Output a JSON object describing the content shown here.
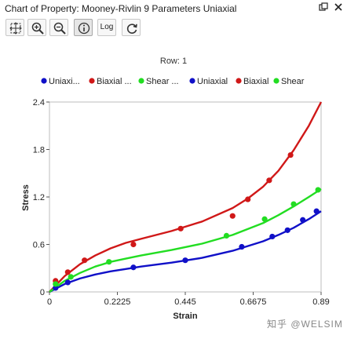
{
  "window": {
    "title": "Chart of Property: Mooney-Rivlin 9 Parameters Uniaxial",
    "pin_icon": "pin-icon",
    "close_icon": "close-icon"
  },
  "toolbar": [
    {
      "name": "fit-button",
      "icon": "fit-icon"
    },
    {
      "name": "zoom-in-button",
      "icon": "zoom-in-icon"
    },
    {
      "name": "zoom-out-button",
      "icon": "zoom-out-icon"
    },
    {
      "name": "info-button",
      "icon": "info-icon",
      "selected": true
    },
    {
      "name": "log-button",
      "label": "Log"
    },
    {
      "name": "refresh-button",
      "icon": "refresh-icon"
    }
  ],
  "watermark": "知乎 @WELSIM",
  "chart_data": {
    "type": "scatter",
    "row_label": "Row: 1",
    "xlabel": "Strain",
    "ylabel": "Stress",
    "xlim": [
      0,
      0.89
    ],
    "ylim": [
      0,
      2.4
    ],
    "x_ticks": [
      "0",
      "0.2225",
      "0.445",
      "0.6675",
      "0.89"
    ],
    "y_ticks": [
      "0",
      "0.6",
      "1.2",
      "1.8",
      "2.4"
    ],
    "legend": [
      "Uniaxi...",
      "Biaxial ...",
      "Shear ...",
      "Uniaxial",
      "Biaxial",
      "Shear"
    ],
    "colors": {
      "uniaxial": "#1010c8",
      "biaxial": "#d01818",
      "shear": "#22dd22"
    },
    "series": [
      {
        "name": "Uniaxi...",
        "kind": "points",
        "color": "#1010c8",
        "x": [
          0.02,
          0.06,
          0.275,
          0.445,
          0.63,
          0.73,
          0.78,
          0.83,
          0.875
        ],
        "y": [
          0.05,
          0.12,
          0.31,
          0.4,
          0.57,
          0.7,
          0.78,
          0.91,
          1.02
        ]
      },
      {
        "name": "Biaxial ...",
        "kind": "points",
        "color": "#d01818",
        "x": [
          0.02,
          0.06,
          0.115,
          0.275,
          0.43,
          0.6,
          0.65,
          0.72,
          0.79
        ],
        "y": [
          0.14,
          0.25,
          0.4,
          0.6,
          0.8,
          0.96,
          1.17,
          1.41,
          1.73
        ]
      },
      {
        "name": "Shear ...",
        "kind": "points",
        "color": "#22dd22",
        "x": [
          0.02,
          0.07,
          0.195,
          0.58,
          0.705,
          0.8,
          0.88
        ],
        "y": [
          0.1,
          0.19,
          0.38,
          0.71,
          0.92,
          1.11,
          1.29
        ]
      },
      {
        "name": "Uniaxial",
        "kind": "line",
        "color": "#1010c8",
        "x": [
          0,
          0.05,
          0.1,
          0.15,
          0.2,
          0.25,
          0.3,
          0.4,
          0.5,
          0.6,
          0.7,
          0.75,
          0.8,
          0.85,
          0.89
        ],
        "y": [
          0,
          0.1,
          0.17,
          0.22,
          0.26,
          0.29,
          0.32,
          0.37,
          0.43,
          0.52,
          0.64,
          0.72,
          0.81,
          0.92,
          1.02
        ]
      },
      {
        "name": "Biaxial",
        "kind": "line",
        "color": "#d01818",
        "x": [
          0,
          0.05,
          0.1,
          0.15,
          0.2,
          0.25,
          0.3,
          0.4,
          0.5,
          0.6,
          0.65,
          0.7,
          0.75,
          0.8,
          0.85,
          0.89
        ],
        "y": [
          0,
          0.2,
          0.35,
          0.46,
          0.55,
          0.62,
          0.67,
          0.77,
          0.89,
          1.06,
          1.18,
          1.33,
          1.53,
          1.79,
          2.1,
          2.4
        ]
      },
      {
        "name": "Shear",
        "kind": "line",
        "color": "#22dd22",
        "x": [
          0,
          0.05,
          0.1,
          0.15,
          0.2,
          0.25,
          0.3,
          0.4,
          0.5,
          0.6,
          0.7,
          0.75,
          0.8,
          0.85,
          0.89
        ],
        "y": [
          0,
          0.14,
          0.24,
          0.32,
          0.38,
          0.42,
          0.46,
          0.53,
          0.61,
          0.72,
          0.87,
          0.97,
          1.08,
          1.2,
          1.3
        ]
      }
    ]
  }
}
